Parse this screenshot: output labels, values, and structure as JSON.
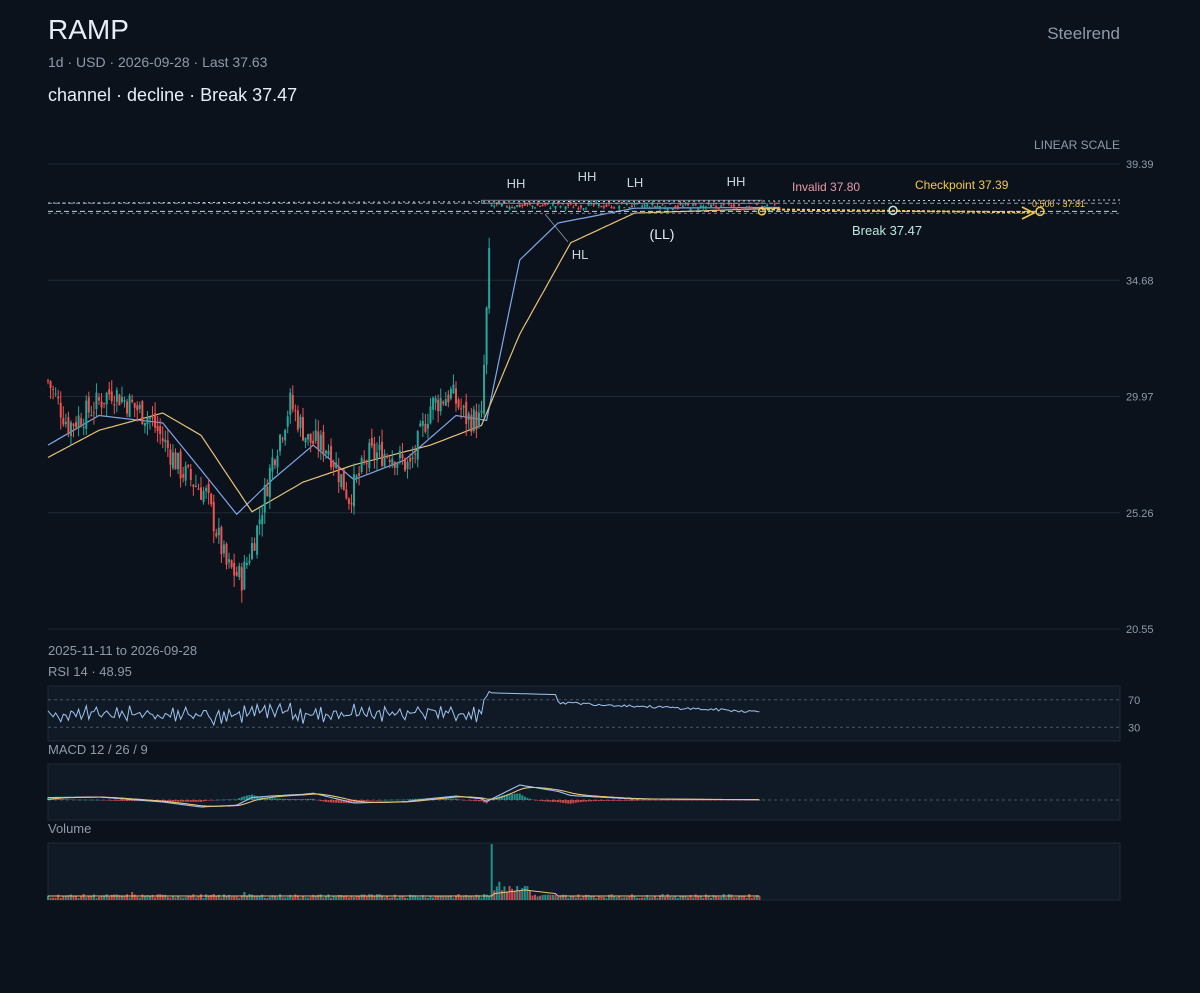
{
  "header": {
    "symbol": "RAMP",
    "meta": "1d · USD · 2026-09-28 · Last 37.63",
    "subtitle": "channel · decline · Break 37.47",
    "brand": "Steelrend",
    "scale_label": "LINEAR SCALE",
    "date_range": "2025-11-11 to 2026-09-28"
  },
  "panels": {
    "rsi_label": "RSI 14 · 48.95",
    "macd_label": "MACD 12 / 26 / 9",
    "volume_label": "Volume"
  },
  "colors": {
    "background": "#0b121c",
    "up": "#26a69a",
    "down": "#ef5350",
    "ma_fast": "#7fa8ea",
    "ma_slow": "#e6c27a",
    "accent": "#f2c94c",
    "invalid": "#e89aa8",
    "break": "#bfe6dd"
  },
  "chart_data": {
    "type": "candlestick",
    "title": "RAMP",
    "x_start": "2025-11-11",
    "x_end": "2026-09-28",
    "last": 37.63,
    "y_ticks": [
      20.55,
      25.26,
      29.97,
      34.68,
      39.39
    ],
    "ylim": [
      20.55,
      39.39
    ],
    "scale": "linear",
    "grid": true,
    "price_path": [
      [
        0,
        30.6
      ],
      [
        8,
        28.8
      ],
      [
        15,
        29.3
      ],
      [
        25,
        30.2
      ],
      [
        40,
        29.1
      ],
      [
        52,
        27.0
      ],
      [
        62,
        26.0
      ],
      [
        70,
        23.1
      ],
      [
        76,
        22.6
      ],
      [
        82,
        24.6
      ],
      [
        88,
        27.4
      ],
      [
        95,
        29.7
      ],
      [
        102,
        28.2
      ],
      [
        110,
        27.9
      ],
      [
        118,
        25.9
      ],
      [
        126,
        27.6
      ],
      [
        134,
        27.7
      ],
      [
        142,
        27.1
      ],
      [
        150,
        29.6
      ],
      [
        158,
        30.1
      ],
      [
        164,
        29.1
      ],
      [
        170,
        29.0
      ],
      [
        174,
        37.7
      ],
      [
        230,
        37.7
      ],
      [
        287,
        37.63
      ]
    ],
    "moving_averages": [
      {
        "name": "MA fast",
        "path": [
          [
            0,
            28.0
          ],
          [
            20,
            29.2
          ],
          [
            45,
            28.9
          ],
          [
            60,
            27.0
          ],
          [
            74,
            25.2
          ],
          [
            88,
            26.6
          ],
          [
            104,
            28.0
          ],
          [
            120,
            26.6
          ],
          [
            140,
            27.4
          ],
          [
            160,
            29.2
          ],
          [
            172,
            29.0
          ],
          [
            185,
            35.5
          ],
          [
            200,
            37.0
          ],
          [
            230,
            37.6
          ],
          [
            287,
            37.63
          ]
        ]
      },
      {
        "name": "MA slow",
        "path": [
          [
            0,
            27.5
          ],
          [
            20,
            28.6
          ],
          [
            45,
            29.3
          ],
          [
            60,
            28.4
          ],
          [
            80,
            25.3
          ],
          [
            100,
            26.5
          ],
          [
            120,
            27.2
          ],
          [
            150,
            28.0
          ],
          [
            170,
            28.8
          ],
          [
            185,
            32.5
          ],
          [
            205,
            36.2
          ],
          [
            230,
            37.4
          ],
          [
            287,
            37.6
          ]
        ]
      }
    ],
    "pattern": {
      "name": "channel",
      "direction": "decline",
      "swing_labels": [
        "HH",
        "HH",
        "LH",
        "HH",
        "HL",
        "(LL)"
      ],
      "invalid_label": "Invalid 37.80",
      "invalid": 37.8,
      "checkpoint_label": "Checkpoint 37.39",
      "checkpoint": 37.39,
      "break_label": "Break 37.47",
      "break": 37.47,
      "fib_label": "0.500 · 37.81",
      "fib": 37.81
    },
    "rsi": {
      "period": 14,
      "value": 48.95,
      "levels": [
        70,
        30
      ]
    },
    "macd": {
      "fast": 12,
      "slow": 26,
      "signal": 9
    },
    "volume": {
      "spike_day": 174
    }
  }
}
